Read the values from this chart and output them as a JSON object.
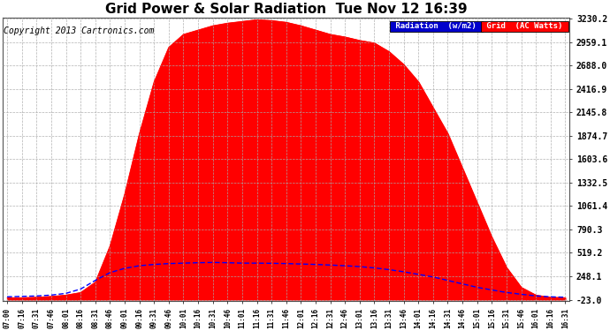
{
  "title": "Grid Power & Solar Radiation  Tue Nov 12 16:39",
  "copyright": "Copyright 2013 Cartronics.com",
  "legend_radiation": "Radiation  (w/m2)",
  "legend_grid": "Grid  (AC Watts)",
  "y_ticks": [
    -23.0,
    248.1,
    519.2,
    790.3,
    1061.4,
    1332.5,
    1603.6,
    1874.7,
    2145.8,
    2416.9,
    2688.0,
    2959.1,
    3230.2
  ],
  "ymin": -23.0,
  "ymax": 3230.2,
  "x_labels": [
    "07:00",
    "07:16",
    "07:31",
    "07:46",
    "08:01",
    "08:16",
    "08:31",
    "08:46",
    "09:01",
    "09:16",
    "09:31",
    "09:46",
    "10:01",
    "10:16",
    "10:31",
    "10:46",
    "11:01",
    "11:16",
    "11:31",
    "11:46",
    "12:01",
    "12:16",
    "12:31",
    "12:46",
    "13:01",
    "13:16",
    "13:31",
    "13:46",
    "14:01",
    "14:16",
    "14:31",
    "14:46",
    "15:01",
    "15:16",
    "15:31",
    "15:46",
    "16:01",
    "16:16",
    "16:31"
  ],
  "bg_color": "#ffffff",
  "grid_color": "#aaaaaa",
  "fill_color": "#ff0000",
  "line_color_blue": "#0000ff",
  "title_fontsize": 11,
  "copyright_fontsize": 7,
  "grid_vals": [
    0,
    0,
    5,
    15,
    30,
    60,
    180,
    600,
    1200,
    1900,
    2500,
    2900,
    3050,
    3100,
    3150,
    3180,
    3200,
    3220,
    3210,
    3190,
    3150,
    3100,
    3050,
    3020,
    2980,
    2950,
    2850,
    2700,
    2500,
    2200,
    1900,
    1500,
    1100,
    700,
    350,
    120,
    30,
    5,
    0
  ],
  "radiation_vals": [
    10,
    15,
    20,
    30,
    50,
    100,
    200,
    290,
    340,
    370,
    385,
    395,
    400,
    405,
    408,
    405,
    400,
    400,
    398,
    395,
    390,
    385,
    378,
    370,
    360,
    345,
    325,
    300,
    270,
    240,
    200,
    160,
    120,
    90,
    60,
    40,
    20,
    10,
    5
  ]
}
